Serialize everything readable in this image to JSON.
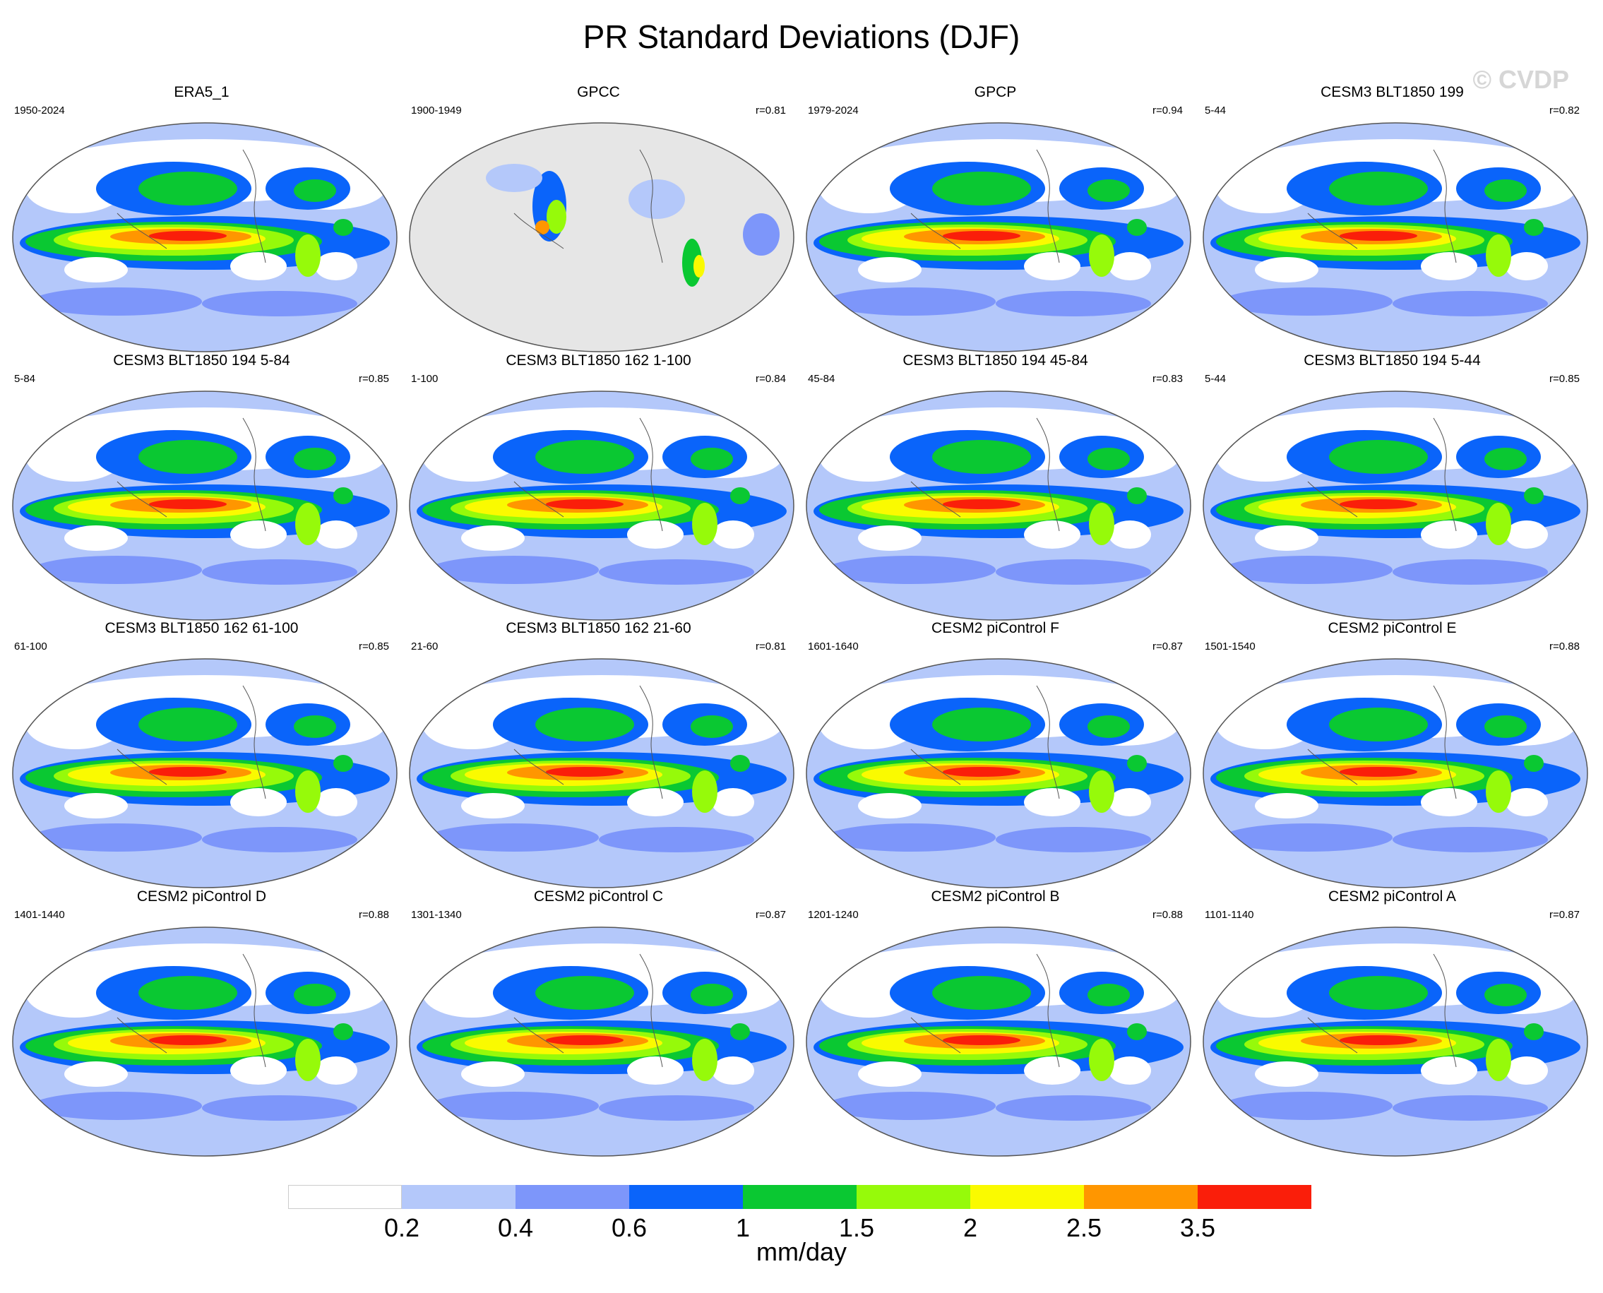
{
  "title": "PR Standard Deviations (DJF)",
  "watermark": "© CVDP",
  "panels": [
    {
      "title": "ERA5_1",
      "years": "1950-2024",
      "r": "",
      "type": "full"
    },
    {
      "title": "GPCC",
      "years": "1900-1949",
      "r": "r=0.81",
      "type": "land"
    },
    {
      "title": "GPCP",
      "years": "1979-2024",
      "r": "r=0.94",
      "type": "full"
    },
    {
      "title": "CESM3 BLT1850 199",
      "years": "5-44",
      "r": "r=0.82",
      "type": "full"
    },
    {
      "title": "CESM3 BLT1850 194 5-84",
      "years": "5-84",
      "r": "r=0.85",
      "type": "full"
    },
    {
      "title": "CESM3 BLT1850 162 1-100",
      "years": "1-100",
      "r": "r=0.84",
      "type": "full"
    },
    {
      "title": "CESM3 BLT1850 194 45-84",
      "years": "45-84",
      "r": "r=0.83",
      "type": "full"
    },
    {
      "title": "CESM3 BLT1850 194 5-44",
      "years": "5-44",
      "r": "r=0.85",
      "type": "full"
    },
    {
      "title": "CESM3 BLT1850 162 61-100",
      "years": "61-100",
      "r": "r=0.85",
      "type": "full"
    },
    {
      "title": "CESM3 BLT1850 162 21-60",
      "years": "21-60",
      "r": "r=0.81",
      "type": "full"
    },
    {
      "title": "CESM2 piControl F",
      "years": "1601-1640",
      "r": "r=0.87",
      "type": "full"
    },
    {
      "title": "CESM2 piControl E",
      "years": "1501-1540",
      "r": "r=0.88",
      "type": "full"
    },
    {
      "title": "CESM2 piControl D",
      "years": "1401-1440",
      "r": "r=0.88",
      "type": "full"
    },
    {
      "title": "CESM2 piControl C",
      "years": "1301-1340",
      "r": "r=0.87",
      "type": "full"
    },
    {
      "title": "CESM2 piControl B",
      "years": "1201-1240",
      "r": "r=0.88",
      "type": "full"
    },
    {
      "title": "CESM2 piControl A",
      "years": "1101-1140",
      "r": "r=0.87",
      "type": "full"
    }
  ],
  "colorbar": {
    "colors": [
      "#ffffff",
      "#b4c8fa",
      "#7d96fa",
      "#0a64fa",
      "#0ac832",
      "#96fa0a",
      "#fafa00",
      "#ff9600",
      "#fa1e0a"
    ],
    "ticks": [
      "0.2",
      "0.4",
      "0.6",
      "1",
      "1.5",
      "2",
      "2.5",
      "3.5"
    ],
    "units": "mm/day"
  }
}
